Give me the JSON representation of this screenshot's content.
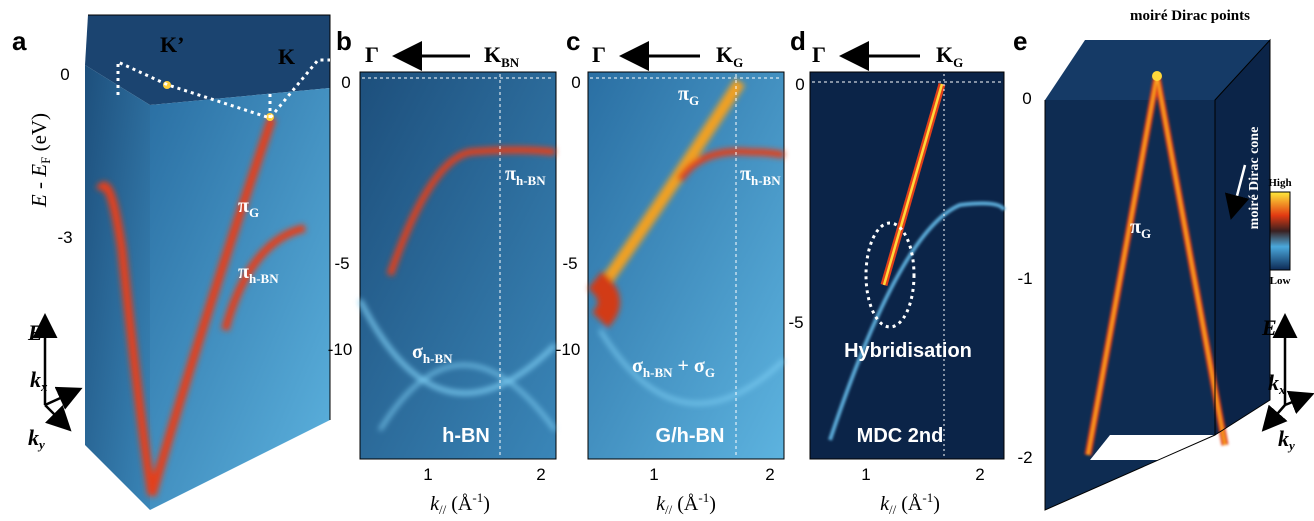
{
  "panels": {
    "a": {
      "letter": "a",
      "k_prime": "K’",
      "k": "K",
      "yticks": [
        0,
        -3
      ],
      "ylabel": {
        "e": "E",
        "minus": " - ",
        "ef": "E",
        "ef_sub": "F",
        "unit": " (eV)"
      },
      "pi_g": {
        "sym": "π",
        "sub": "G"
      },
      "pi_hbn": {
        "sym": "π",
        "sub": "h-BN"
      },
      "axes": {
        "e": "E",
        "kx": "k",
        "kx_sub": "x",
        "ky": "k",
        "ky_sub": "y"
      }
    },
    "b": {
      "letter": "b",
      "gamma": "Γ",
      "k": {
        "sym": "K",
        "sub": "BN"
      },
      "yticks": [
        0,
        -5,
        -10
      ],
      "xticks": [
        1,
        2
      ],
      "pi_hbn": {
        "sym": "π",
        "sub": "h-BN"
      },
      "sigma_hbn": {
        "sym": "σ",
        "sub": "h-BN"
      },
      "sample": "h-BN",
      "xlabel": {
        "k": "k",
        "sub": "//",
        "unit": " (Å",
        "sup": "-1",
        "close": ")"
      }
    },
    "c": {
      "letter": "c",
      "gamma": "Γ",
      "k": {
        "sym": "K",
        "sub": "G"
      },
      "yticks": [
        0,
        -5,
        -10
      ],
      "xticks": [
        1,
        2
      ],
      "pi_g": {
        "sym": "π",
        "sub": "G"
      },
      "pi_hbn": {
        "sym": "π",
        "sub": "h-BN"
      },
      "sigma": {
        "a": "σ",
        "a_sub": "h-BN",
        "plus": " + ",
        "b": "σ",
        "b_sub": "G"
      },
      "sample": "G/h-BN",
      "xlabel": {
        "k": "k",
        "sub": "//",
        "unit": " (Å",
        "sup": "-1",
        "close": ")"
      }
    },
    "d": {
      "letter": "d",
      "gamma": "Γ",
      "k": {
        "sym": "K",
        "sub": "G"
      },
      "yticks": [
        0,
        -5
      ],
      "xticks": [
        1,
        2
      ],
      "annotation": "Hybridisation",
      "sample": "MDC 2nd",
      "xlabel": {
        "k": "k",
        "sub": "//",
        "unit": " (Å",
        "sup": "-1",
        "close": ")"
      }
    },
    "e": {
      "letter": "e",
      "top": "moiré Dirac points",
      "side": "moiré Dirac cone",
      "colorbar": {
        "high": "High",
        "low": "Low"
      },
      "yticks": [
        0,
        -1,
        -2
      ],
      "pi_g": {
        "sym": "π",
        "sub": "G"
      },
      "axes": {
        "e": "E",
        "kx": "k",
        "kx_sub": "x",
        "ky": "k",
        "ky_sub": "y"
      }
    }
  }
}
